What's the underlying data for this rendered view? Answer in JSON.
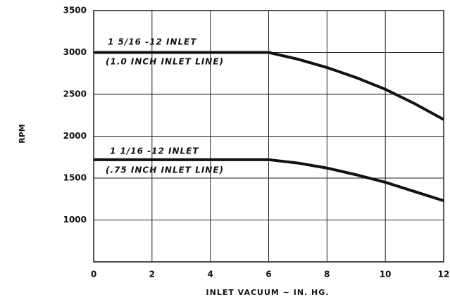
{
  "chart_data": {
    "type": "line",
    "x_label": "INLET VACUUM ~ IN. HG.",
    "y_label": "RPM",
    "x": [
      0,
      2,
      4,
      6,
      7,
      8,
      9,
      10,
      11,
      12
    ],
    "series": [
      {
        "color": "#111111",
        "values": [
          3000,
          3000,
          3000,
          3000,
          2920,
          2820,
          2700,
          2560,
          2390,
          2200
        ]
      },
      {
        "color": "#111111",
        "values": [
          1720,
          1720,
          1720,
          1720,
          1680,
          1620,
          1540,
          1450,
          1340,
          1230
        ]
      }
    ],
    "annotations": [
      "1 5/16 -12 INLET",
      "(1.0 INCH INLET LINE)",
      "1 1/16 -12 INLET",
      "(.75 INCH INLET LINE)"
    ],
    "xlim": [
      0,
      12
    ],
    "xticks": [
      0,
      2,
      4,
      6,
      8,
      10,
      12
    ],
    "ylim": [
      500,
      3500
    ],
    "yticks": [
      1000,
      1500,
      2000,
      2500,
      3000,
      3500
    ],
    "grid": true
  }
}
